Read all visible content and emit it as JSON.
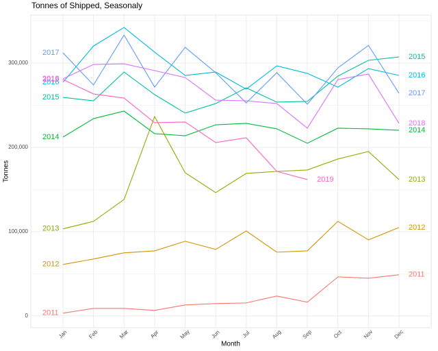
{
  "chart_data": {
    "type": "line",
    "title": "Tonnes of Shipped, Seasonaly",
    "x_label": "Month",
    "y_label": "Tonnes",
    "categories": [
      "Jan",
      "Feb",
      "Mar",
      "Apr",
      "May",
      "Jun",
      "Jul",
      "Aug",
      "Sep",
      "Oct",
      "Nov",
      "Dec"
    ],
    "ylim": [
      -14000,
      357000
    ],
    "yticks": [
      0,
      {
        "value": 100000,
        "label": "100,000"
      },
      {
        "value": 200000,
        "label": "200,000"
      },
      {
        "value": 300000,
        "label": "300,000"
      }
    ],
    "grid": true,
    "series": [
      {
        "name": "2011",
        "color": "#F8766D",
        "values": [
          3250,
          8900,
          8900,
          6500,
          13000,
          14600,
          15400,
          23600,
          16300,
          46300,
          44700,
          48800
        ]
      },
      {
        "name": "2012",
        "color": "#D39200",
        "values": [
          61000,
          67500,
          74800,
          77200,
          88600,
          78900,
          100800,
          75600,
          77200,
          112200,
          90200,
          104900
        ]
      },
      {
        "name": "2013",
        "color": "#93AA00",
        "values": [
          103300,
          112200,
          138200,
          236600,
          169900,
          146300,
          169100,
          171500,
          173200,
          186200,
          195100,
          161800
        ]
      },
      {
        "name": "2014",
        "color": "#00BA38",
        "values": [
          212200,
          234100,
          243100,
          216300,
          213800,
          226800,
          228500,
          222000,
          204900,
          222800,
          222000,
          220300
        ]
      },
      {
        "name": "2015",
        "color": "#00C19F",
        "values": [
          259300,
          255300,
          289400,
          262600,
          240700,
          252000,
          270700,
          253700,
          254500,
          284600,
          303300,
          307300
        ]
      },
      {
        "name": "2016",
        "color": "#00B9E3",
        "values": [
          277200,
          320300,
          342300,
          313000,
          285400,
          289400,
          269100,
          296700,
          287800,
          271500,
          293500,
          285400
        ]
      },
      {
        "name": "2017",
        "color": "#619CFF",
        "values": [
          312200,
          274000,
          333300,
          271500,
          318700,
          288600,
          252800,
          288600,
          251200,
          294300,
          321100,
          264200
        ]
      },
      {
        "name": "2018",
        "color": "#DB72FB",
        "values": [
          281300,
          298400,
          299200,
          291100,
          282900,
          256100,
          255300,
          252000,
          222800,
          280500,
          287000,
          228500
        ]
      },
      {
        "name": "2019",
        "color": "#FF61C3",
        "values": [
          280500,
          263400,
          258500,
          229300,
          230100,
          205700,
          211400,
          171500,
          161800,
          null,
          null,
          null
        ]
      }
    ]
  }
}
